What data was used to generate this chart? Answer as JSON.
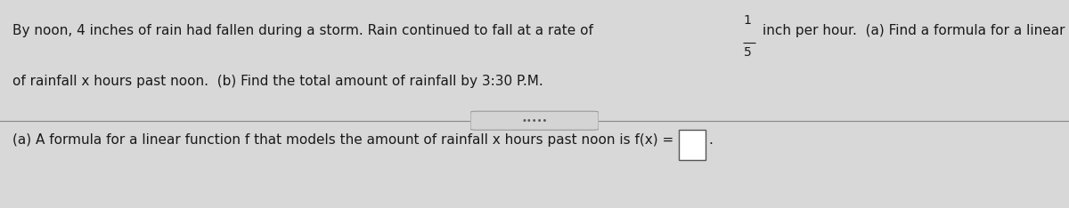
{
  "background_color": "#d8d8d8",
  "top_section_bg": "#e8e8e8",
  "bottom_section_bg": "#e0e0e0",
  "line1": "By noon, 4 inches of rain had fallen during a storm. Rain continued to fall at a rate of",
  "fraction_num": "1",
  "fraction_den": "5",
  "line1_cont": "inch per hour.  (a) Find a formula for a linear function f that models the amount",
  "line2": "of rainfall x hours past noon.  (b) Find the total amount of rainfall by 3:30 P.M.",
  "separator_dots": "•••••",
  "bottom_line": "(a) A formula for a linear function f that models the amount of rainfall x hours past noon is f(x) =",
  "font_size": 11,
  "text_color": "#1a1a1a"
}
